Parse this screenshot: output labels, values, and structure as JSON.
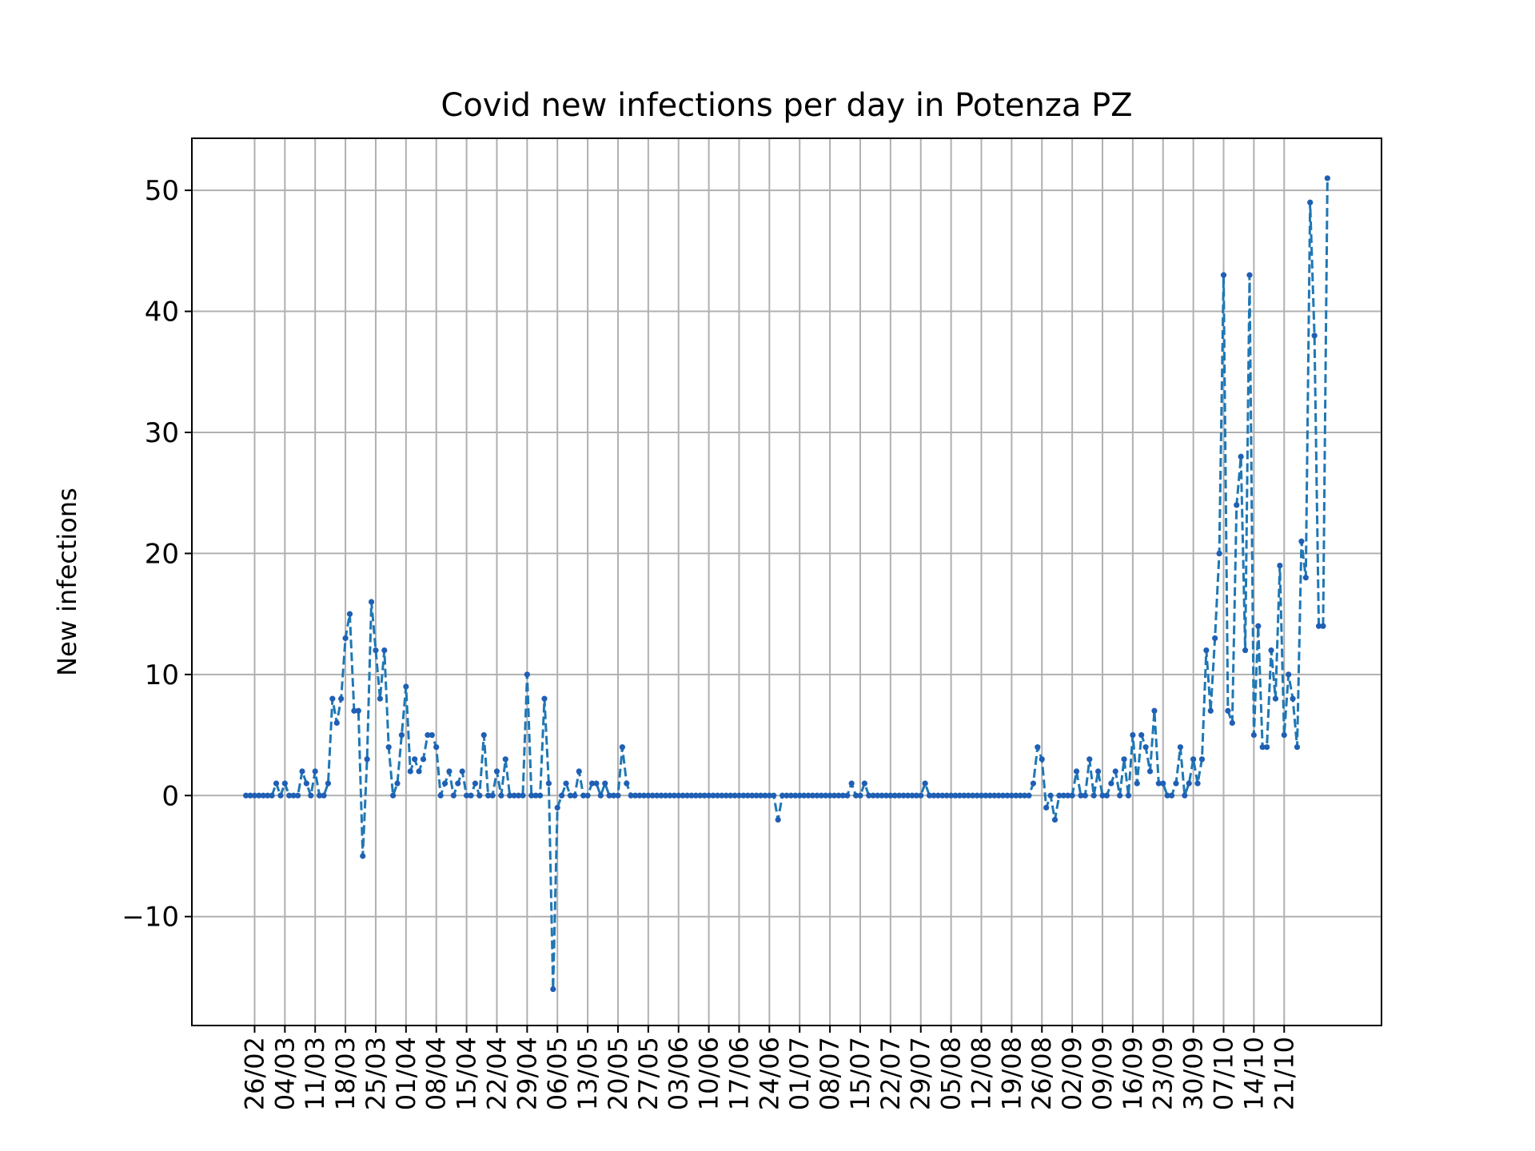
{
  "chart_data": {
    "type": "line",
    "title": "Covid new infections per day in Potenza PZ",
    "xlabel": "",
    "ylabel": "New infections",
    "x_start": "2020-02-24",
    "x_tick_labels": [
      "26/02",
      "04/03",
      "11/03",
      "18/03",
      "25/03",
      "01/04",
      "08/04",
      "15/04",
      "22/04",
      "29/04",
      "06/05",
      "13/05",
      "20/05",
      "27/05",
      "03/06",
      "10/06",
      "17/06",
      "24/06",
      "01/07",
      "08/07",
      "15/07",
      "22/07",
      "29/07",
      "05/08",
      "12/08",
      "19/08",
      "26/08",
      "02/09",
      "09/09",
      "16/09",
      "23/09",
      "30/09",
      "07/10",
      "14/10",
      "21/10"
    ],
    "y_ticks": [
      -10,
      0,
      10,
      20,
      30,
      40,
      50
    ],
    "ylim": [
      -19,
      54.3
    ],
    "grid": true,
    "line_style": "dashed",
    "marker": "dot",
    "series": [
      {
        "name": "",
        "color": "#1f77b4",
        "marker_color": "#1f5fb4",
        "values": [
          0,
          0,
          0,
          0,
          0,
          0,
          0,
          1,
          0,
          1,
          0,
          0,
          0,
          2,
          1,
          0,
          2,
          0,
          0,
          1,
          8,
          6,
          8,
          13,
          15,
          7,
          7,
          -5,
          3,
          16,
          12,
          8,
          12,
          4,
          0,
          1,
          5,
          9,
          2,
          3,
          2,
          3,
          5,
          5,
          4,
          0,
          1,
          2,
          0,
          1,
          2,
          0,
          0,
          1,
          0,
          5,
          0,
          0,
          2,
          0,
          3,
          0,
          0,
          0,
          0,
          10,
          0,
          0,
          0,
          8,
          1,
          -16,
          -1,
          0,
          1,
          0,
          0,
          2,
          0,
          0,
          1,
          1,
          0,
          1,
          0,
          0,
          0,
          4,
          1,
          0,
          0,
          0,
          0,
          0,
          0,
          0,
          0,
          0,
          0,
          0,
          0,
          0,
          0,
          0,
          0,
          0,
          0,
          0,
          0,
          0,
          0,
          0,
          0,
          0,
          0,
          0,
          0,
          0,
          0,
          0,
          0,
          0,
          0,
          -2,
          0,
          0,
          0,
          0,
          0,
          0,
          0,
          0,
          0,
          0,
          0,
          0,
          0,
          0,
          0,
          0,
          1,
          0,
          0,
          1,
          0,
          0,
          0,
          0,
          0,
          0,
          0,
          0,
          0,
          0,
          0,
          0,
          0,
          1,
          0,
          0,
          0,
          0,
          0,
          0,
          0,
          0,
          0,
          0,
          0,
          0,
          0,
          0,
          0,
          0,
          0,
          0,
          0,
          0,
          0,
          0,
          0,
          0,
          1,
          4,
          3,
          -1,
          0,
          -2,
          0,
          0,
          0,
          0,
          2,
          0,
          0,
          3,
          0,
          2,
          0,
          0,
          1,
          2,
          0,
          3,
          0,
          5,
          1,
          5,
          4,
          2,
          7,
          1,
          1,
          0,
          0,
          1,
          4,
          0,
          1,
          3,
          1,
          3,
          12,
          7,
          13,
          20,
          43,
          7,
          6,
          24,
          28,
          12,
          43,
          5,
          14,
          4,
          4,
          12,
          8,
          19,
          5,
          10,
          8,
          4,
          21,
          18,
          49,
          38,
          14,
          14,
          51
        ]
      }
    ]
  }
}
